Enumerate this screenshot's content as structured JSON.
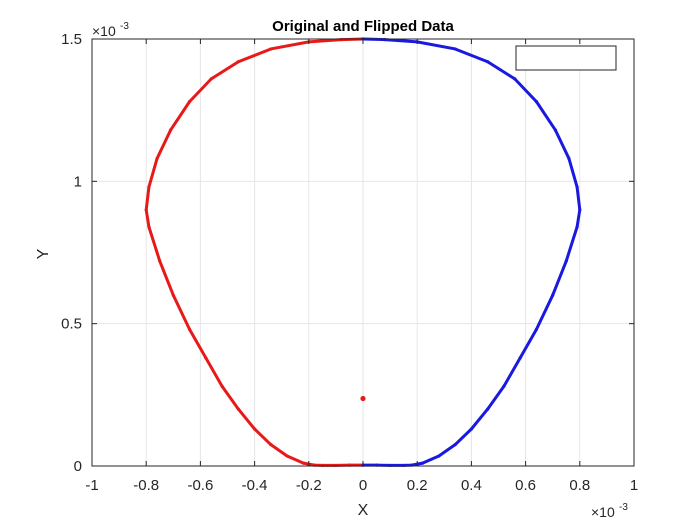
{
  "chart_data": {
    "type": "scatter",
    "title": "Original and Flipped Data",
    "xlabel": "X",
    "ylabel": "Y",
    "xlim": [
      -0.001,
      0.001
    ],
    "ylim": [
      0,
      0.0015
    ],
    "x_multiplier_label": "×10",
    "x_multiplier_exp": "-3",
    "y_multiplier_label": "×10",
    "y_multiplier_exp": "-3",
    "x_ticks": [
      {
        "value": -1.0,
        "label": "-1"
      },
      {
        "value": -0.8,
        "label": "-0.8"
      },
      {
        "value": -0.6,
        "label": "-0.6"
      },
      {
        "value": -0.4,
        "label": "-0.4"
      },
      {
        "value": -0.2,
        "label": "-0.2"
      },
      {
        "value": 0.0,
        "label": "0"
      },
      {
        "value": 0.2,
        "label": "0.2"
      },
      {
        "value": 0.4,
        "label": "0.4"
      },
      {
        "value": 0.6,
        "label": "0.6"
      },
      {
        "value": 0.8,
        "label": "0.8"
      },
      {
        "value": 1.0,
        "label": "1"
      }
    ],
    "y_ticks": [
      {
        "value": 0.0,
        "label": "0"
      },
      {
        "value": 0.5,
        "label": "0.5"
      },
      {
        "value": 1.0,
        "label": "1"
      },
      {
        "value": 1.5,
        "label": "1.5"
      }
    ],
    "grid": true,
    "legend": {
      "placement": "top-right",
      "entries": []
    },
    "series": [
      {
        "color": "#e81919",
        "values_x": [
          0,
          -0.05,
          -0.1,
          -0.15,
          -0.18,
          -0.22,
          -0.28,
          -0.34,
          -0.4,
          -0.46,
          -0.52,
          -0.58,
          -0.64,
          -0.7,
          -0.75,
          -0.79,
          -0.8,
          -0.79,
          -0.76,
          -0.71,
          -0.64,
          -0.56,
          -0.46,
          -0.34,
          -0.2,
          -0.08,
          0
        ],
        "values_y": [
          0.003,
          0.003,
          0.002,
          0.002,
          0.003,
          0.01,
          0.035,
          0.075,
          0.13,
          0.2,
          0.28,
          0.38,
          0.48,
          0.6,
          0.72,
          0.84,
          0.9,
          0.98,
          1.08,
          1.18,
          1.28,
          1.36,
          1.42,
          1.465,
          1.49,
          1.498,
          1.5
        ]
      },
      {
        "color": "#1919e0",
        "values_x": [
          0,
          0.05,
          0.1,
          0.15,
          0.18,
          0.22,
          0.28,
          0.34,
          0.4,
          0.46,
          0.52,
          0.58,
          0.64,
          0.7,
          0.75,
          0.79,
          0.8,
          0.79,
          0.76,
          0.71,
          0.64,
          0.56,
          0.46,
          0.34,
          0.2,
          0.08,
          0
        ],
        "values_y": [
          0.003,
          0.003,
          0.002,
          0.002,
          0.003,
          0.01,
          0.035,
          0.075,
          0.13,
          0.2,
          0.28,
          0.38,
          0.48,
          0.6,
          0.72,
          0.84,
          0.9,
          0.98,
          1.08,
          1.18,
          1.28,
          1.36,
          1.42,
          1.465,
          1.49,
          1.498,
          1.5
        ]
      },
      {
        "color": "#e81919",
        "values_x": [
          0.0
        ],
        "values_y": [
          0.237
        ]
      }
    ]
  }
}
